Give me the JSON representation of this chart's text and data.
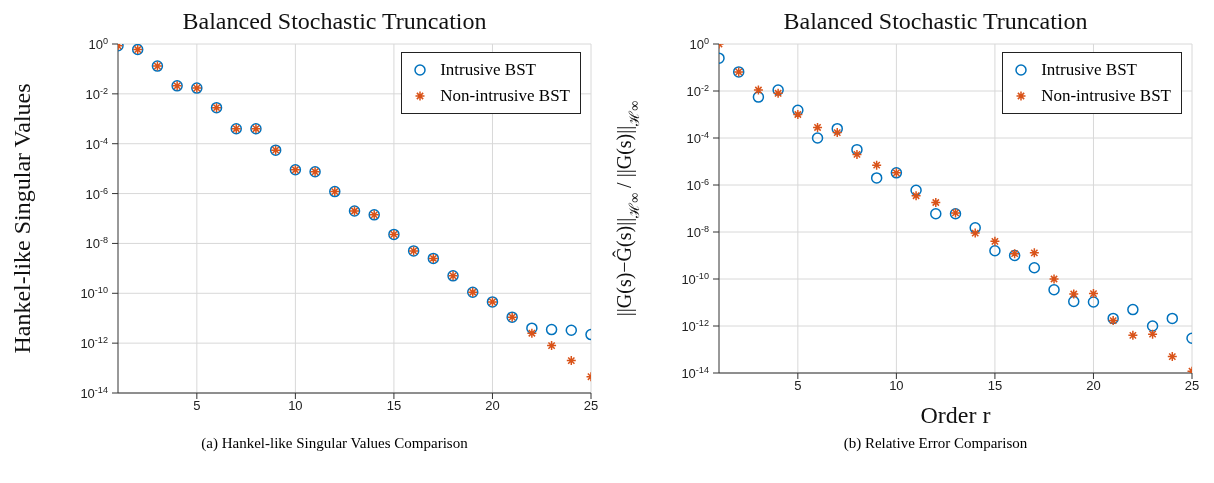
{
  "chart_data": [
    {
      "type": "scatter",
      "title": "Balanced Stochastic Truncation",
      "ylabel": "Hankel-like Singular Values",
      "annotations": [
        "(a) Hankel-like Singular Values Comparison"
      ],
      "x": [
        1,
        2,
        3,
        4,
        5,
        6,
        7,
        8,
        9,
        10,
        11,
        12,
        13,
        14,
        15,
        16,
        17,
        18,
        19,
        20,
        21,
        22,
        23,
        24,
        25
      ],
      "series": [
        {
          "name": "Intrusive BST",
          "color": "#0072bd",
          "marker": "circle",
          "values": [
            0.85,
            0.6,
            0.13,
            0.021,
            0.017,
            0.0028,
            0.0004,
            0.0004,
            5.5e-05,
            9e-06,
            7.5e-06,
            1.2e-06,
            2e-07,
            1.4e-07,
            2.3e-08,
            5e-09,
            2.5e-09,
            5e-10,
            1.1e-10,
            4.5e-11,
            1.1e-11,
            4e-12,
            3.5e-12,
            3.3e-12,
            2.2e-12
          ]
        },
        {
          "name": "Non-intrusive BST",
          "color": "#d95319",
          "marker": "cross",
          "values": [
            0.85,
            0.6,
            0.13,
            0.021,
            0.017,
            0.0028,
            0.0004,
            0.0004,
            5.5e-05,
            9e-06,
            7.5e-06,
            1.2e-06,
            2e-07,
            1.4e-07,
            2.3e-08,
            5e-09,
            2.5e-09,
            5e-10,
            1.1e-10,
            4.5e-11,
            1.1e-11,
            2.5e-12,
            8e-13,
            2e-13,
            4.5e-14
          ]
        }
      ],
      "xlim": [
        1,
        25
      ],
      "xticks": [
        5,
        10,
        15,
        20,
        25
      ],
      "ylim": [
        1e-14,
        1
      ],
      "yticks": [
        {
          "value": 1,
          "label": "10$^{0}$"
        },
        {
          "value": 0.01,
          "label": "10$^{-2}$"
        },
        {
          "value": 0.0001,
          "label": "10$^{-4}$"
        },
        {
          "value": 1e-06,
          "label": "10$^{-6}$"
        },
        {
          "value": 1e-08,
          "label": "10$^{-8}$"
        },
        {
          "value": 1e-10,
          "label": "10$^{-10}$"
        },
        {
          "value": 1e-12,
          "label": "10$^{-12}$"
        },
        {
          "value": 1e-14,
          "label": "10$^{-14}$"
        }
      ],
      "log": "y",
      "grid": true,
      "legend": "top right"
    },
    {
      "type": "scatter",
      "title": "Balanced Stochastic Truncation",
      "xlabel": "Order r",
      "ylabel": "||G(s)−Ĝ(s)||$_{ℋ∞}$ / ||G(s)||$_{ℋ∞}$",
      "annotations": [
        "(b) Relative Error Comparison"
      ],
      "x": [
        1,
        2,
        3,
        4,
        5,
        6,
        7,
        8,
        9,
        10,
        11,
        12,
        13,
        14,
        15,
        16,
        17,
        18,
        19,
        20,
        21,
        22,
        23,
        24,
        25
      ],
      "series": [
        {
          "name": "Intrusive BST",
          "color": "#0072bd",
          "marker": "circle",
          "values": [
            0.25,
            0.065,
            0.0055,
            0.011,
            0.0015,
            0.0001,
            0.00025,
            3.2e-05,
            2e-06,
            3.3e-06,
            6e-07,
            6e-08,
            6e-08,
            1.5e-08,
            1.6e-09,
            1e-09,
            3e-10,
            3.5e-11,
            1.1e-11,
            1.05e-11,
            2.1e-12,
            5e-12,
            1e-12,
            2.1e-12,
            3e-13
          ]
        },
        {
          "name": "Non-intrusive BST",
          "color": "#d95319",
          "marker": "cross",
          "values": [
            1,
            0.065,
            0.011,
            0.008,
            0.001,
            0.00028,
            0.00017,
            2e-05,
            7e-06,
            3.3e-06,
            3.5e-07,
            1.8e-07,
            6.5e-08,
            9e-09,
            4e-09,
            1.2e-09,
            1.3e-09,
            1e-10,
            2.3e-11,
            2.4e-11,
            1.7e-12,
            4e-13,
            4.5e-13,
            5e-14,
            1.2e-14
          ]
        }
      ],
      "xlim": [
        1,
        25
      ],
      "xticks": [
        5,
        10,
        15,
        20,
        25
      ],
      "ylim": [
        1e-14,
        1
      ],
      "yticks": [
        {
          "value": 1,
          "label": "10$^{0}$"
        },
        {
          "value": 0.01,
          "label": "10$^{-2}$"
        },
        {
          "value": 0.0001,
          "label": "10$^{-4}$"
        },
        {
          "value": 1e-06,
          "label": "10$^{-6}$"
        },
        {
          "value": 1e-08,
          "label": "10$^{-8}$"
        },
        {
          "value": 1e-10,
          "label": "10$^{-10}$"
        },
        {
          "value": 1e-12,
          "label": "10$^{-12}$"
        },
        {
          "value": 1e-14,
          "label": "10$^{-14}$"
        }
      ],
      "log": "y",
      "grid": true,
      "legend": "top right"
    }
  ]
}
